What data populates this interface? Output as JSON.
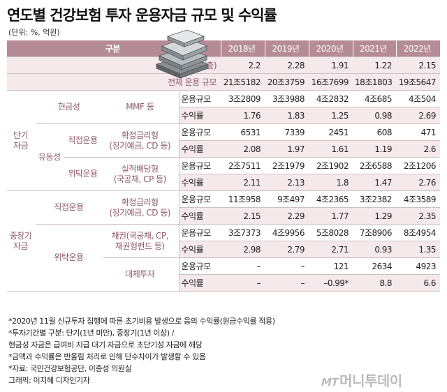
{
  "title": "연도별 건강보험 투자 운용자금 규모 및 수익률",
  "unit": "(단위: %, 억원)",
  "header": {
    "label": "구분",
    "years": [
      "2018년",
      "2019년",
      "2020년",
      "2021년",
      "2022년"
    ]
  },
  "summary": [
    {
      "label": "수익률실적(총)",
      "values": [
        "2.2",
        "2.28",
        "1.91",
        "1.22",
        "2.15"
      ]
    },
    {
      "label": "전체 운용 규모",
      "values": [
        "21조5182",
        "20조3759",
        "16조7699",
        "18조1803",
        "19조5647"
      ]
    }
  ],
  "cats": {
    "short": "단기\n자금",
    "mid": "중장기\n자금",
    "cash": "현금성",
    "liquid": "유동성",
    "direct1": "직접운용",
    "indirect1": "위탁운용",
    "direct2": "직접운용",
    "indirect2": "위탁운용"
  },
  "products": {
    "mmf": "MMF 등",
    "fixed1": "확정금리형\n(정기예금, CD 등)",
    "actual": "실적배당형\n(국공채, CP 등)",
    "fixed2": "확정금리형\n(정기예금, CD 등)",
    "bond": "채권(국공채, CP,\n채권형펀드 등)",
    "alt": "대체투자"
  },
  "metrics": {
    "scale": "운용규모",
    "rate": "수익률"
  },
  "rows": {
    "mmf_scale": [
      "3조2809",
      "3조3988",
      "4조2832",
      "4조685",
      "4조504"
    ],
    "mmf_rate": [
      "1.76",
      "1.83",
      "1.25",
      "0.98",
      "2.69"
    ],
    "fixed1_scale": [
      "6531",
      "7339",
      "2451",
      "608",
      "471"
    ],
    "fixed1_rate": [
      "2.08",
      "1.97",
      "1.61",
      "1.19",
      "2.6"
    ],
    "actual_scale": [
      "2조7511",
      "2조1979",
      "2조1902",
      "2조6588",
      "2조1206"
    ],
    "actual_rate": [
      "2.11",
      "2.13",
      "1.8",
      "1.47",
      "2.76"
    ],
    "fixed2_scale": [
      "11조958",
      "9조497",
      "4조2365",
      "3조2382",
      "4조3589"
    ],
    "fixed2_rate": [
      "2.15",
      "2.29",
      "1.77",
      "1.29",
      "2.35"
    ],
    "bond_scale": [
      "3조7373",
      "4조9956",
      "5조8028",
      "7조8906",
      "8조4954"
    ],
    "bond_rate": [
      "2.98",
      "2.79",
      "2.71",
      "0.93",
      "1.35"
    ],
    "alt_scale": [
      "–",
      "–",
      "121",
      "2634",
      "4923"
    ],
    "alt_rate": [
      "–",
      "–",
      "–0.99*",
      "8.8",
      "6.6"
    ]
  },
  "notes": [
    "*2020년 11월 신규투자 집행에 따른 초기비용 발생으로 음의 수익률(원금수익률 적용)",
    "*투자기간별 구분: 단기(1년 미만), 중장기(1년 이상) /",
    "현금성 자금은 급여비 지급 대기 자금으로 초단기성 자금에 해당",
    "*금액과 수익률은 반올림 처리로 인해 단수차이가 발생할 수 있음",
    "*자료: 국민건강보험공단, 이종성 의원실",
    "그래픽: 이지혜 디자인기자"
  ],
  "logo": {
    "mt": "MT",
    "name": "머니투데이"
  },
  "colors": {
    "header": "#b58c96",
    "accent": "#8e5b69",
    "tint": "#f5e9ec"
  }
}
